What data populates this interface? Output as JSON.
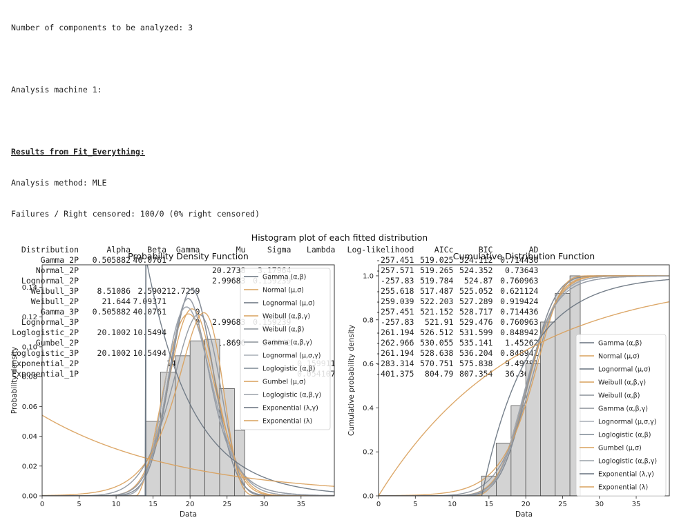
{
  "output": {
    "line1": "Number of components to be analyzed: 3",
    "line2": "Analysis machine 1:",
    "results_heading": "Results from Fit_Everything:",
    "method": "Analysis method: MLE",
    "failures": "Failures / Right censored: 100/0 (0% right censored)"
  },
  "table": {
    "columns": [
      "Distribution",
      "Alpha",
      "Beta",
      "Gamma",
      "Mu",
      "Sigma",
      "Lambda",
      "Log-likelihood",
      "AICc",
      "BIC",
      "AD"
    ],
    "rows": [
      [
        "Gamma_2P",
        "0.505882",
        "40.0761",
        "",
        "",
        "",
        "",
        "-257.451",
        "519.025",
        "524.112",
        "0.714436"
      ],
      [
        "Normal_2P",
        "",
        "",
        "",
        "20.2738",
        "3.17964",
        "",
        "-257.571",
        "519.265",
        "524.352",
        "0.73643"
      ],
      [
        "Lognormal_2P",
        "",
        "",
        "",
        "2.99683",
        "0.159239",
        "",
        "-257.83",
        "519.784",
        "524.87",
        "0.760963"
      ],
      [
        "Weibull_3P",
        "8.51086",
        "2.5902",
        "12.7259",
        "",
        "",
        "",
        "-255.618",
        "517.487",
        "525.052",
        "0.621124"
      ],
      [
        "Weibull_2P",
        "21.644",
        "7.09371",
        "",
        "",
        "",
        "",
        "-259.039",
        "522.203",
        "527.289",
        "0.919424"
      ],
      [
        "Gamma_3P",
        "0.505882",
        "40.0761",
        "0",
        "",
        "",
        "",
        "-257.451",
        "521.152",
        "528.717",
        "0.714436"
      ],
      [
        "Lognormal_3P",
        "",
        "",
        "0",
        "2.99683",
        "0.159239",
        "",
        "-257.83",
        "521.91",
        "529.476",
        "0.760963"
      ],
      [
        "Loglogistic_2P",
        "20.1002",
        "10.5494",
        "",
        "",
        "",
        "",
        "-261.194",
        "526.512",
        "531.599",
        "0.848942"
      ],
      [
        "Gumbel_2P",
        "",
        "",
        "",
        "21.8696",
        "2.9942",
        "",
        "-262.966",
        "530.055",
        "535.141",
        "1.45262"
      ],
      [
        "Loglogistic_3P",
        "20.1002",
        "10.5494",
        "0",
        "",
        "",
        "",
        "-261.194",
        "528.638",
        "536.204",
        "0.848942"
      ],
      [
        "Exponential_2P",
        "",
        "",
        "14.0203",
        "",
        "",
        "0.159911",
        "-283.314",
        "570.751",
        "575.838",
        "9.49781"
      ],
      [
        "Exponential_1P",
        "",
        "",
        "",
        "",
        "",
        "0.054107",
        "-401.375",
        "804.79",
        "807.354",
        "36.3689"
      ]
    ]
  },
  "figure": {
    "suptitle": "Histogram plot of each fitted distribution"
  },
  "chart_data": [
    {
      "type": "line",
      "title": "Probability Density Function",
      "xlabel": "Data",
      "ylabel": "Probability density",
      "xlim": [
        0,
        39.5
      ],
      "ylim": [
        0,
        0.155
      ],
      "xticks": [
        0,
        5,
        10,
        15,
        20,
        25,
        30,
        35
      ],
      "yticks": [
        0.0,
        0.02,
        0.04,
        0.06,
        0.08,
        0.1,
        0.12,
        0.14
      ],
      "legend_position": "upper right",
      "histogram": {
        "bin_edges": [
          14,
          16,
          18,
          20,
          22,
          24,
          26,
          27.4
        ],
        "density": [
          0.05,
          0.083,
          0.094,
          0.104,
          0.105,
          0.072,
          0.044
        ]
      },
      "series": [
        {
          "name": "Gamma (α,β)",
          "color": "#66717d"
        },
        {
          "name": "Normal (μ,σ)",
          "color": "#d9a05b"
        },
        {
          "name": "Lognormal (μ,σ)",
          "color": "#66717d"
        },
        {
          "name": "Weibull (α,β,γ)",
          "color": "#d9a05b"
        },
        {
          "name": "Weibull (α,β)",
          "color": "#8a9099"
        },
        {
          "name": "Gamma (α,β,γ)",
          "color": "#8a9099"
        },
        {
          "name": "Lognormal (μ,σ,γ)",
          "color": "#a7adb5"
        },
        {
          "name": "Loglogistic (α,β)",
          "color": "#7c8793"
        },
        {
          "name": "Gumbel (μ,σ)",
          "color": "#d9a05b"
        },
        {
          "name": "Loglogistic (α,β,γ)",
          "color": "#9aa0a8"
        },
        {
          "name": "Exponential (λ,γ)",
          "color": "#66717d"
        },
        {
          "name": "Exponential (λ)",
          "color": "#d9a05b"
        }
      ]
    },
    {
      "type": "line",
      "title": "Cumulative Distribution Function",
      "xlabel": "Data",
      "ylabel": "Cumulative probability density",
      "xlim": [
        0,
        39.5
      ],
      "ylim": [
        0,
        1.05
      ],
      "xticks": [
        0,
        5,
        10,
        15,
        20,
        25,
        30,
        35
      ],
      "yticks": [
        0.0,
        0.2,
        0.4,
        0.6,
        0.8,
        1.0
      ],
      "legend_position": "lower right",
      "histogram": {
        "bin_edges": [
          14,
          16,
          18,
          20,
          22,
          24,
          26,
          27.4
        ],
        "cumulative": [
          0.09,
          0.24,
          0.41,
          0.6,
          0.79,
          0.92,
          1.0
        ]
      },
      "series": [
        {
          "name": "Gamma (α,β)",
          "color": "#66717d"
        },
        {
          "name": "Normal (μ,σ)",
          "color": "#d9a05b"
        },
        {
          "name": "Lognormal (μ,σ)",
          "color": "#66717d"
        },
        {
          "name": "Weibull (α,β,γ)",
          "color": "#d9a05b"
        },
        {
          "name": "Weibull (α,β)",
          "color": "#8a9099"
        },
        {
          "name": "Gamma (α,β,γ)",
          "color": "#8a9099"
        },
        {
          "name": "Lognormal (μ,σ,γ)",
          "color": "#a7adb5"
        },
        {
          "name": "Loglogistic (α,β)",
          "color": "#7c8793"
        },
        {
          "name": "Gumbel (μ,σ)",
          "color": "#d9a05b"
        },
        {
          "name": "Loglogistic (α,β,γ)",
          "color": "#9aa0a8"
        },
        {
          "name": "Exponential (λ,γ)",
          "color": "#66717d"
        },
        {
          "name": "Exponential (λ)",
          "color": "#d9a05b"
        }
      ]
    }
  ]
}
